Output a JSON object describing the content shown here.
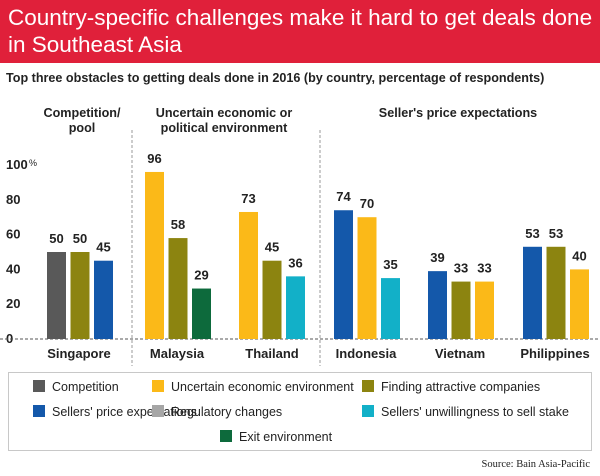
{
  "header": {
    "title": "Country-specific challenges make it hard to get deals done in Southeast Asia",
    "subtitle": "Top three obstacles to getting deals done in 2016 (by country, percentage of respondents)"
  },
  "source": "Source: Bain Asia-Pacific",
  "colors": {
    "banner": "#e0203a",
    "Competition": "#595959",
    "Uncertain economic environment": "#fbb918",
    "Finding attractive companies": "#8c8410",
    "Sellers' price expectations": "#1458aa",
    "Regulatory changes": "#a6a6a6",
    "Sellers' unwillingness to sell stake": "#12b0c8",
    "Exit environment": "#0d6a3c"
  },
  "chart_data": {
    "type": "bar",
    "y_unit": "%",
    "ylim": [
      0,
      100
    ],
    "yticks": [
      0,
      20,
      40,
      60,
      80,
      100
    ],
    "categories": [
      "Singapore",
      "Malaysia",
      "Thailand",
      "Indonesia",
      "Vietnam",
      "Philippines"
    ],
    "panel_labels": [
      "Competition/ pool",
      "Uncertain economic or political environment",
      "Seller's price expectations"
    ],
    "groups": [
      {
        "country": "Singapore",
        "bars": [
          {
            "series": "Competition",
            "value": 50
          },
          {
            "series": "Finding attractive companies",
            "value": 50
          },
          {
            "series": "Sellers' price expectations",
            "value": 45
          }
        ]
      },
      {
        "country": "Malaysia",
        "bars": [
          {
            "series": "Uncertain economic environment",
            "value": 96
          },
          {
            "series": "Finding attractive companies",
            "value": 58
          },
          {
            "series": "Exit environment",
            "value": 29
          }
        ]
      },
      {
        "country": "Thailand",
        "bars": [
          {
            "series": "Uncertain economic environment",
            "value": 73
          },
          {
            "series": "Finding attractive companies",
            "value": 45
          },
          {
            "series": "Sellers' unwillingness to sell stake",
            "value": 36
          }
        ]
      },
      {
        "country": "Indonesia",
        "bars": [
          {
            "series": "Sellers' price expectations",
            "value": 74
          },
          {
            "series": "Uncertain economic environment",
            "value": 70
          },
          {
            "series": "Sellers' unwillingness to sell stake",
            "value": 35
          }
        ]
      },
      {
        "country": "Vietnam",
        "bars": [
          {
            "series": "Sellers' price expectations",
            "value": 39
          },
          {
            "series": "Finding attractive companies",
            "value": 33
          },
          {
            "series": "Uncertain economic environment",
            "value": 33
          }
        ]
      },
      {
        "country": "Philippines",
        "bars": [
          {
            "series": "Sellers' price expectations",
            "value": 53
          },
          {
            "series": "Finding attractive companies",
            "value": 53
          },
          {
            "series": "Uncertain economic environment",
            "value": 40
          }
        ]
      }
    ],
    "legend": [
      "Competition",
      "Uncertain economic environment",
      "Finding attractive companies",
      "Sellers' price expectations",
      "Regulatory changes",
      "Sellers' unwillingness to sell stake",
      "Exit environment"
    ],
    "legend_placement": "bottom"
  }
}
